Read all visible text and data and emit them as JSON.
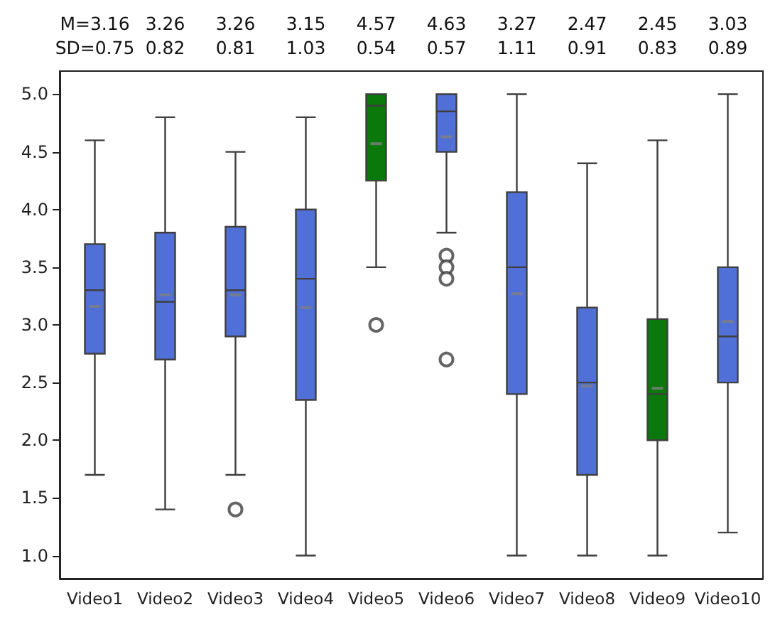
{
  "chart_data": {
    "type": "box",
    "categories": [
      "Video1",
      "Video2",
      "Video3",
      "Video4",
      "Video5",
      "Video6",
      "Video7",
      "Video8",
      "Video9",
      "Video10"
    ],
    "colors": [
      "#5170d7",
      "#5170d7",
      "#5170d7",
      "#5170d7",
      "#0a780a",
      "#5170d7",
      "#5170d7",
      "#5170d7",
      "#0a780a",
      "#5170d7"
    ],
    "boxes": [
      {
        "low": 1.7,
        "q1": 2.75,
        "median": 3.3,
        "q3": 3.7,
        "high": 4.6,
        "mean": 3.16
      },
      {
        "low": 1.4,
        "q1": 2.7,
        "median": 3.2,
        "q3": 3.8,
        "high": 4.8,
        "mean": 3.26
      },
      {
        "low": 1.7,
        "q1": 2.9,
        "median": 3.3,
        "q3": 3.85,
        "high": 4.5,
        "mean": 3.26,
        "outliers": [
          1.4
        ]
      },
      {
        "low": 1.0,
        "q1": 2.35,
        "median": 3.4,
        "q3": 4.0,
        "high": 4.8,
        "mean": 3.15
      },
      {
        "low": 3.5,
        "q1": 4.25,
        "median": 4.9,
        "q3": 5.0,
        "high": 5.0,
        "mean": 4.57,
        "outliers": [
          3.0
        ]
      },
      {
        "low": 3.8,
        "q1": 4.5,
        "median": 4.85,
        "q3": 5.0,
        "high": 5.0,
        "mean": 4.63,
        "outliers": [
          3.6,
          3.5,
          3.4,
          2.7
        ]
      },
      {
        "low": 1.0,
        "q1": 2.4,
        "median": 3.5,
        "q3": 4.15,
        "high": 5.0,
        "mean": 3.27
      },
      {
        "low": 1.0,
        "q1": 1.7,
        "median": 2.5,
        "q3": 3.15,
        "high": 4.4,
        "mean": 2.47
      },
      {
        "low": 1.0,
        "q1": 2.0,
        "median": 2.4,
        "q3": 3.05,
        "high": 4.6,
        "mean": 2.45
      },
      {
        "low": 1.2,
        "q1": 2.5,
        "median": 2.9,
        "q3": 3.5,
        "high": 5.0,
        "mean": 3.03
      }
    ],
    "ylim": [
      0.8,
      5.2
    ],
    "yticks": [
      {
        "value": 1,
        "label": "1.0"
      },
      {
        "value": 1.5,
        "label": "1.5"
      },
      {
        "value": 2,
        "label": "2.0"
      },
      {
        "value": 2.5,
        "label": "2.5"
      },
      {
        "value": 3,
        "label": "3.0"
      },
      {
        "value": 3.5,
        "label": "3.5"
      },
      {
        "value": 4,
        "label": "4.0"
      },
      {
        "value": 4.5,
        "label": "4.5"
      },
      {
        "value": 5,
        "label": "5.0"
      }
    ],
    "grid": false,
    "annotations": [
      "M=3.16\nSD=0.75",
      "3.26\n0.82",
      "3.26\n0.81",
      "3.15\n1.03",
      "4.57\n0.54",
      "4.63\n0.57",
      "3.27\n1.11",
      "2.47\n0.91",
      "2.45\n0.83",
      "3.03\n0.89"
    ]
  }
}
